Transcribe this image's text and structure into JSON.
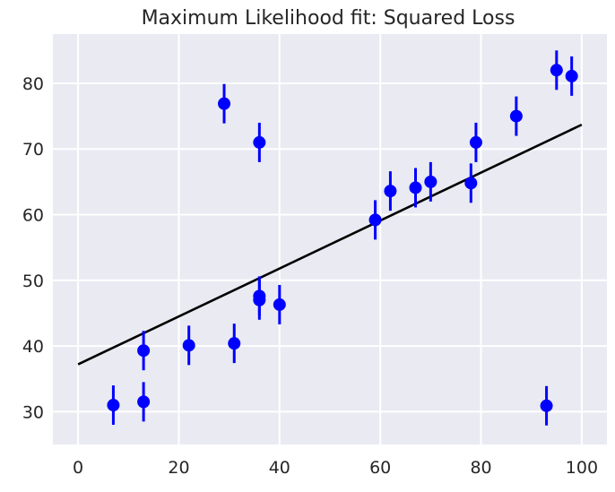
{
  "chart_data": {
    "type": "scatter",
    "title": "Maximum Likelihood fit: Squared Loss",
    "xlabel": "",
    "ylabel": "",
    "xlim": [
      -5,
      105
    ],
    "ylim": [
      25,
      87.5
    ],
    "xticks": [
      0,
      20,
      40,
      60,
      80,
      100
    ],
    "yticks": [
      30,
      40,
      50,
      60,
      70,
      80
    ],
    "grid": true,
    "background": "#EAEAF2",
    "point_color": "#0000FF",
    "line_color": "#000000",
    "points": [
      {
        "x": 7,
        "y": 31.0,
        "err": 3
      },
      {
        "x": 13,
        "y": 31.5,
        "err": 3
      },
      {
        "x": 13,
        "y": 39.3,
        "err": 3
      },
      {
        "x": 22,
        "y": 40.1,
        "err": 3
      },
      {
        "x": 29,
        "y": 76.9,
        "err": 3
      },
      {
        "x": 31,
        "y": 40.4,
        "err": 3
      },
      {
        "x": 36,
        "y": 71.0,
        "err": 3
      },
      {
        "x": 36,
        "y": 47.6,
        "err": 3
      },
      {
        "x": 36,
        "y": 47.0,
        "err": 3
      },
      {
        "x": 40,
        "y": 46.3,
        "err": 3
      },
      {
        "x": 59,
        "y": 59.2,
        "err": 3
      },
      {
        "x": 62,
        "y": 63.6,
        "err": 3
      },
      {
        "x": 67,
        "y": 64.1,
        "err": 3
      },
      {
        "x": 70,
        "y": 65.0,
        "err": 3
      },
      {
        "x": 78,
        "y": 64.8,
        "err": 3
      },
      {
        "x": 79,
        "y": 71.0,
        "err": 3
      },
      {
        "x": 87,
        "y": 75.0,
        "err": 3
      },
      {
        "x": 93,
        "y": 30.9,
        "err": 3
      },
      {
        "x": 95,
        "y": 82.0,
        "err": 3
      },
      {
        "x": 98,
        "y": 81.1,
        "err": 3
      }
    ],
    "fit_line": {
      "x": [
        0,
        100
      ],
      "y": [
        37.2,
        73.7
      ]
    }
  }
}
